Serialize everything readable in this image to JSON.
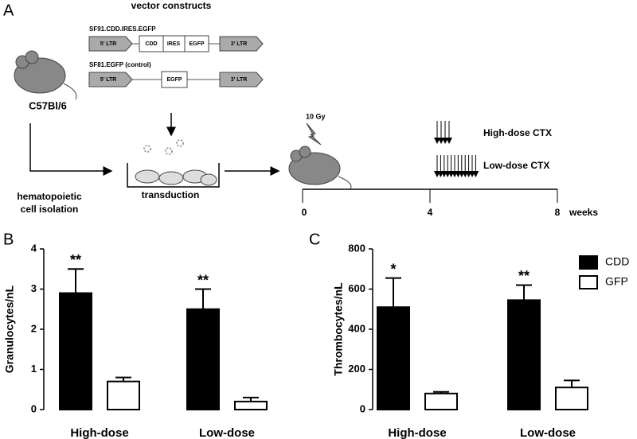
{
  "diagram": {
    "panel": "A",
    "title": "vector constructs",
    "constructs": [
      {
        "name": "SF91.CDD.IRES.EGFP",
        "elements": [
          "5' LTR",
          "CDD",
          "IRES",
          "EGFP",
          "3' LTR"
        ]
      },
      {
        "name": "SF81.EGFP (control)",
        "elements": [
          "5' LTR",
          "EGFP",
          "3' LTR"
        ]
      }
    ],
    "mouse": "C57Bl/6",
    "isolation": [
      "hematopoietic",
      "cell isolation"
    ],
    "transduction": "transduction",
    "irradiation": "10 Gy",
    "treatments": [
      "High-dose CTX",
      "Low-dose CTX"
    ],
    "timeline": {
      "ticks": [
        "0",
        "4",
        "8"
      ],
      "unit": "weeks"
    }
  },
  "chart_data": [
    {
      "type": "bar",
      "panel": "B",
      "ylabel": "Granulocytes/nL",
      "categories": [
        "High-dose",
        "Low-dose"
      ],
      "series": [
        {
          "name": "CDD",
          "color": "#000000",
          "values": [
            2.9,
            2.5
          ],
          "errors": [
            0.6,
            0.5
          ]
        },
        {
          "name": "GFP",
          "color": "#ffffff",
          "values": [
            0.7,
            0.2
          ],
          "errors": [
            0.1,
            0.1
          ]
        }
      ],
      "significance": [
        "**",
        "**"
      ],
      "ylim": [
        0,
        4
      ],
      "yticks": [
        0,
        1,
        2,
        3,
        4
      ]
    },
    {
      "type": "bar",
      "panel": "C",
      "ylabel": "Thrombocytes/nL",
      "categories": [
        "High-dose",
        "Low-dose"
      ],
      "series": [
        {
          "name": "CDD",
          "color": "#000000",
          "values": [
            510,
            545
          ],
          "errors": [
            145,
            75
          ]
        },
        {
          "name": "GFP",
          "color": "#ffffff",
          "values": [
            80,
            110
          ],
          "errors": [
            8,
            35
          ]
        }
      ],
      "significance": [
        "*",
        "**"
      ],
      "ylim": [
        0,
        800
      ],
      "yticks": [
        0,
        200,
        400,
        600,
        800
      ],
      "legend": "upper right"
    }
  ]
}
